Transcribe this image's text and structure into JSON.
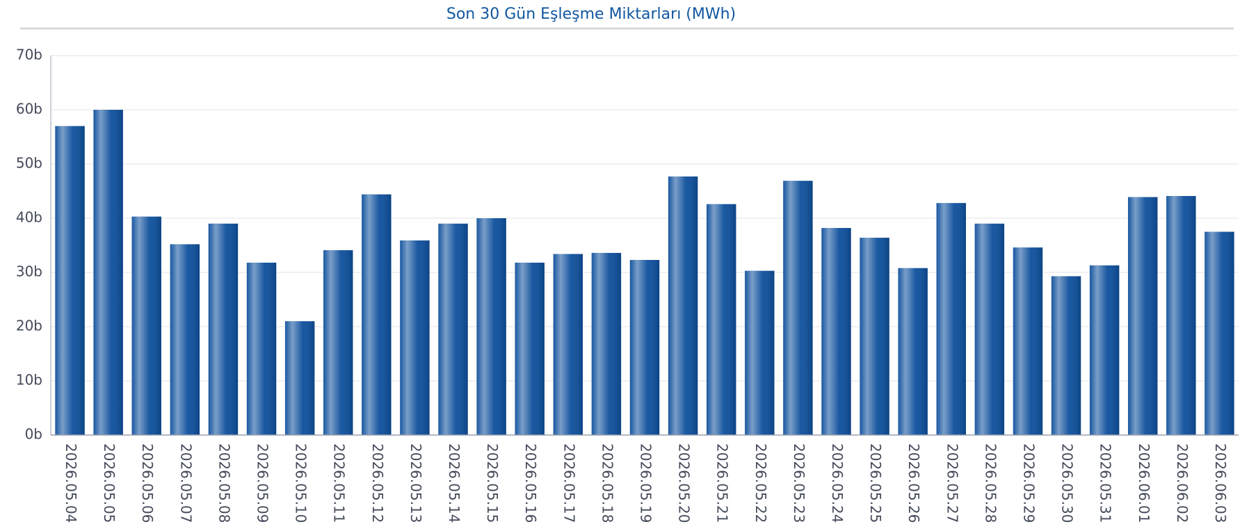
{
  "chart_data": {
    "type": "bar",
    "title": "Son 30 Gün Eşleşme Miktarları (MWh)",
    "categories": [
      "2026.05.04",
      "2026.05.05",
      "2026.05.06",
      "2026.05.07",
      "2026.05.08",
      "2026.05.09",
      "2026.05.10",
      "2026.05.11",
      "2026.05.12",
      "2026.05.13",
      "2026.05.14",
      "2026.05.15",
      "2026.05.16",
      "2026.05.17",
      "2026.05.18",
      "2026.05.19",
      "2026.05.20",
      "2026.05.21",
      "2026.05.22",
      "2026.05.23",
      "2026.05.24",
      "2026.05.25",
      "2026.05.26",
      "2026.05.27",
      "2026.05.28",
      "2026.05.29",
      "2026.05.30",
      "2026.05.31",
      "2026.06.01",
      "2026.06.02",
      "2026.06.03"
    ],
    "values": [
      57,
      60,
      40.3,
      35.2,
      39,
      31.8,
      21,
      34.1,
      44.4,
      35.9,
      39,
      40,
      31.8,
      33.4,
      33.6,
      32.3,
      47.7,
      42.6,
      30.3,
      46.9,
      38.2,
      36.4,
      30.8,
      42.8,
      39,
      34.6,
      29.3,
      31.3,
      43.9,
      44.1,
      37.5
    ],
    "color": "#0d4f9c",
    "ylim": [
      0,
      70
    ],
    "yticks": [
      {
        "value": 0,
        "label": "0b"
      },
      {
        "value": 10,
        "label": "10b"
      },
      {
        "value": 20,
        "label": "20b"
      },
      {
        "value": 30,
        "label": "30b"
      },
      {
        "value": 40,
        "label": "40b"
      },
      {
        "value": 50,
        "label": "50b"
      },
      {
        "value": 60,
        "label": "60b"
      },
      {
        "value": 70,
        "label": "70b"
      }
    ],
    "grid": true
  }
}
